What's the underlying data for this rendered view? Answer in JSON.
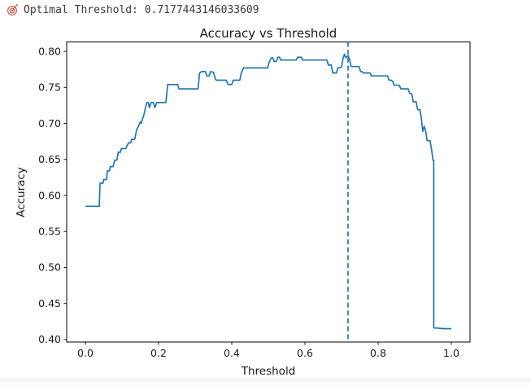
{
  "header": {
    "icon": "target-icon",
    "icon_color": "#c9534f",
    "text": "Optimal Threshold: 0.7177443146033609",
    "optimal_threshold_value": 0.7177443146033609
  },
  "chart_data": {
    "type": "line",
    "title": "Accuracy vs Threshold",
    "xlabel": "Threshold",
    "ylabel": "Accuracy",
    "xlim": [
      -0.0511,
      1.0511
    ],
    "ylim": [
      0.3965,
      0.8131
    ],
    "xticks": [
      0.0,
      0.2,
      0.4,
      0.6,
      0.8,
      1.0
    ],
    "xtick_labels": [
      "0.0",
      "0.2",
      "0.4",
      "0.6",
      "0.8",
      "1.0"
    ],
    "yticks": [
      0.4,
      0.45,
      0.5,
      0.55,
      0.6,
      0.65,
      0.7,
      0.75,
      0.8
    ],
    "ytick_labels": [
      "0.40",
      "0.45",
      "0.50",
      "0.55",
      "0.60",
      "0.65",
      "0.70",
      "0.75",
      "0.80"
    ],
    "grid": false,
    "legend_position": "none",
    "line_color": "#1f77b4",
    "vline": {
      "x": 0.7177443146033609,
      "style": "dashed",
      "color": "#1f77b4"
    },
    "series": [
      {
        "name": "accuracy",
        "points": [
          [
            0.0,
            0.585
          ],
          [
            0.01,
            0.585
          ],
          [
            0.02,
            0.585
          ],
          [
            0.03,
            0.585
          ],
          [
            0.038,
            0.585
          ],
          [
            0.04,
            0.617
          ],
          [
            0.048,
            0.617
          ],
          [
            0.05,
            0.622
          ],
          [
            0.058,
            0.622
          ],
          [
            0.06,
            0.634
          ],
          [
            0.066,
            0.634
          ],
          [
            0.068,
            0.64
          ],
          [
            0.076,
            0.64
          ],
          [
            0.08,
            0.649
          ],
          [
            0.086,
            0.649
          ],
          [
            0.09,
            0.66
          ],
          [
            0.096,
            0.66
          ],
          [
            0.098,
            0.665
          ],
          [
            0.11,
            0.665
          ],
          [
            0.118,
            0.673
          ],
          [
            0.124,
            0.673
          ],
          [
            0.126,
            0.678
          ],
          [
            0.135,
            0.678
          ],
          [
            0.14,
            0.691
          ],
          [
            0.146,
            0.697
          ],
          [
            0.15,
            0.702
          ],
          [
            0.153,
            0.7
          ],
          [
            0.156,
            0.706
          ],
          [
            0.16,
            0.712
          ],
          [
            0.165,
            0.723
          ],
          [
            0.168,
            0.729
          ],
          [
            0.172,
            0.729
          ],
          [
            0.175,
            0.722
          ],
          [
            0.18,
            0.729
          ],
          [
            0.186,
            0.729
          ],
          [
            0.19,
            0.722
          ],
          [
            0.195,
            0.729
          ],
          [
            0.22,
            0.729
          ],
          [
            0.225,
            0.754
          ],
          [
            0.252,
            0.754
          ],
          [
            0.256,
            0.748
          ],
          [
            0.308,
            0.748
          ],
          [
            0.312,
            0.77
          ],
          [
            0.318,
            0.772
          ],
          [
            0.328,
            0.772
          ],
          [
            0.332,
            0.766
          ],
          [
            0.338,
            0.766
          ],
          [
            0.342,
            0.772
          ],
          [
            0.35,
            0.771
          ],
          [
            0.355,
            0.762
          ],
          [
            0.358,
            0.76
          ],
          [
            0.385,
            0.76
          ],
          [
            0.39,
            0.754
          ],
          [
            0.4,
            0.754
          ],
          [
            0.404,
            0.76
          ],
          [
            0.422,
            0.76
          ],
          [
            0.426,
            0.77
          ],
          [
            0.432,
            0.777
          ],
          [
            0.498,
            0.777
          ],
          [
            0.502,
            0.785
          ],
          [
            0.508,
            0.791
          ],
          [
            0.512,
            0.791
          ],
          [
            0.516,
            0.786
          ],
          [
            0.522,
            0.786
          ],
          [
            0.526,
            0.792
          ],
          [
            0.53,
            0.792
          ],
          [
            0.534,
            0.788
          ],
          [
            0.576,
            0.788
          ],
          [
            0.58,
            0.792
          ],
          [
            0.59,
            0.792
          ],
          [
            0.594,
            0.788
          ],
          [
            0.66,
            0.788
          ],
          [
            0.664,
            0.781
          ],
          [
            0.672,
            0.781
          ],
          [
            0.676,
            0.77
          ],
          [
            0.686,
            0.77
          ],
          [
            0.69,
            0.777
          ],
          [
            0.7,
            0.778
          ],
          [
            0.704,
            0.79
          ],
          [
            0.708,
            0.796
          ],
          [
            0.712,
            0.791
          ],
          [
            0.7177,
            0.794
          ],
          [
            0.722,
            0.789
          ],
          [
            0.726,
            0.779
          ],
          [
            0.748,
            0.779
          ],
          [
            0.752,
            0.772
          ],
          [
            0.756,
            0.772
          ],
          [
            0.76,
            0.77
          ],
          [
            0.778,
            0.77
          ],
          [
            0.782,
            0.766
          ],
          [
            0.826,
            0.766
          ],
          [
            0.83,
            0.76
          ],
          [
            0.836,
            0.76
          ],
          [
            0.84,
            0.758
          ],
          [
            0.844,
            0.753
          ],
          [
            0.858,
            0.753
          ],
          [
            0.862,
            0.748
          ],
          [
            0.882,
            0.748
          ],
          [
            0.886,
            0.742
          ],
          [
            0.892,
            0.741
          ],
          [
            0.896,
            0.73
          ],
          [
            0.904,
            0.73
          ],
          [
            0.908,
            0.719
          ],
          [
            0.914,
            0.719
          ],
          [
            0.918,
            0.708
          ],
          [
            0.922,
            0.689
          ],
          [
            0.926,
            0.696
          ],
          [
            0.93,
            0.689
          ],
          [
            0.934,
            0.676
          ],
          [
            0.942,
            0.676
          ],
          [
            0.946,
            0.664
          ],
          [
            0.95,
            0.649
          ],
          [
            0.952,
            0.649
          ],
          [
            0.952,
            0.416
          ],
          [
            0.96,
            0.416
          ],
          [
            0.98,
            0.415
          ],
          [
            1.0,
            0.415
          ]
        ]
      }
    ]
  }
}
